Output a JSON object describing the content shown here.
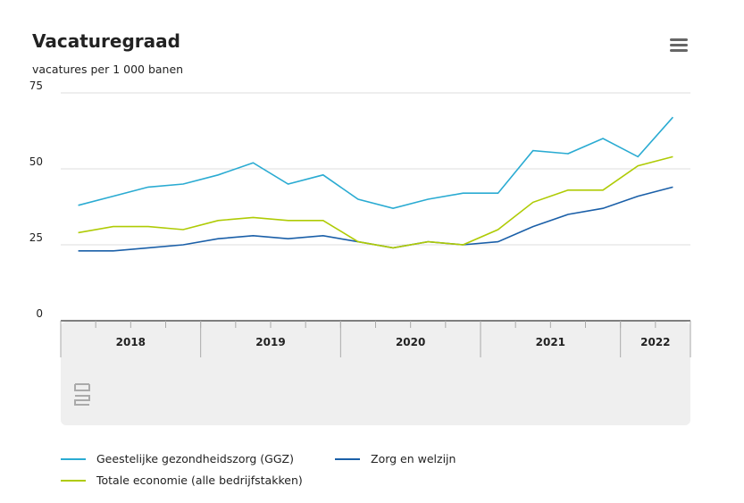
{
  "chart_data": {
    "type": "line",
    "title": "Vacaturegraad",
    "subtitle": "vacatures per 1 000 banen",
    "categories": [
      null,
      null,
      null,
      null,
      null,
      null,
      null,
      null,
      null,
      null,
      null,
      null,
      null,
      null,
      null,
      null,
      null,
      null
    ],
    "year_groups": [
      {
        "label": "2018",
        "quarters": 4
      },
      {
        "label": "2019",
        "quarters": 4
      },
      {
        "label": "2020",
        "quarters": 4
      },
      {
        "label": "2021",
        "quarters": 4
      },
      {
        "label": "2022",
        "quarters": 2
      }
    ],
    "ylim": [
      0,
      75
    ],
    "yticks": [
      0,
      25,
      50,
      75
    ],
    "grid": true,
    "series": [
      {
        "name": "Geestelijke gezondheidszorg (GGZ)",
        "color": "#2aabd2",
        "values": [
          38,
          41,
          44,
          45,
          48,
          52,
          45,
          48,
          40,
          37,
          40,
          42,
          42,
          56,
          55,
          60,
          54,
          67
        ]
      },
      {
        "name": "Zorg en welzijn",
        "color": "#1a5fa8",
        "values": [
          23,
          23,
          24,
          25,
          27,
          28,
          27,
          28,
          26,
          24,
          26,
          25,
          26,
          31,
          35,
          37,
          41,
          44
        ]
      },
      {
        "name": "Totale economie (alle bedrijfstakken)",
        "color": "#afcb05",
        "values": [
          29,
          31,
          31,
          30,
          33,
          34,
          33,
          33,
          26,
          24,
          26,
          25,
          30,
          39,
          43,
          43,
          51,
          54
        ]
      }
    ]
  }
}
